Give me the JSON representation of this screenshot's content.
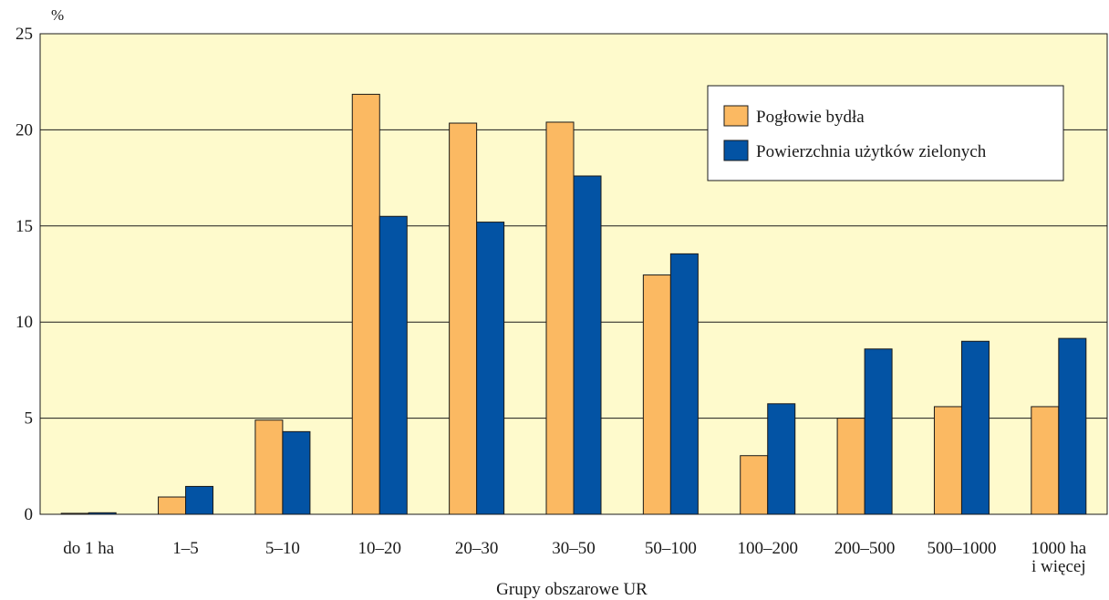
{
  "chart_data": {
    "type": "bar",
    "title": "",
    "xlabel": "Grupy obszarowe UR",
    "ylabel": "%",
    "ylim": [
      0,
      25
    ],
    "yticks": [
      0,
      5,
      10,
      15,
      20,
      25
    ],
    "grid": true,
    "legend_position": "top-right",
    "categories": [
      {
        "line1": "do 1 ha",
        "line2": ""
      },
      {
        "line1": "1–5",
        "line2": ""
      },
      {
        "line1": "5–10",
        "line2": ""
      },
      {
        "line1": "10–20",
        "line2": ""
      },
      {
        "line1": "20–30",
        "line2": ""
      },
      {
        "line1": "30–50",
        "line2": ""
      },
      {
        "line1": "50–100",
        "line2": ""
      },
      {
        "line1": "100–200",
        "line2": ""
      },
      {
        "line1": "200–500",
        "line2": ""
      },
      {
        "line1": "500–1000",
        "line2": ""
      },
      {
        "line1": "1000 ha",
        "line2": "i więcej"
      }
    ],
    "series": [
      {
        "name": "Pogłowie bydła",
        "color": "#fbb962",
        "values": [
          0.05,
          0.9,
          4.9,
          21.85,
          20.35,
          20.4,
          12.45,
          3.05,
          5.0,
          5.6,
          5.6
        ]
      },
      {
        "name": "Powierzchnia użytków zielonych",
        "color": "#0353a4",
        "values": [
          0.08,
          1.45,
          4.3,
          15.5,
          15.2,
          17.6,
          13.55,
          5.75,
          8.6,
          9.0,
          9.15
        ]
      }
    ],
    "colors": {
      "plot_background": "#fefacc",
      "gridline": "#1a1a1a"
    }
  }
}
